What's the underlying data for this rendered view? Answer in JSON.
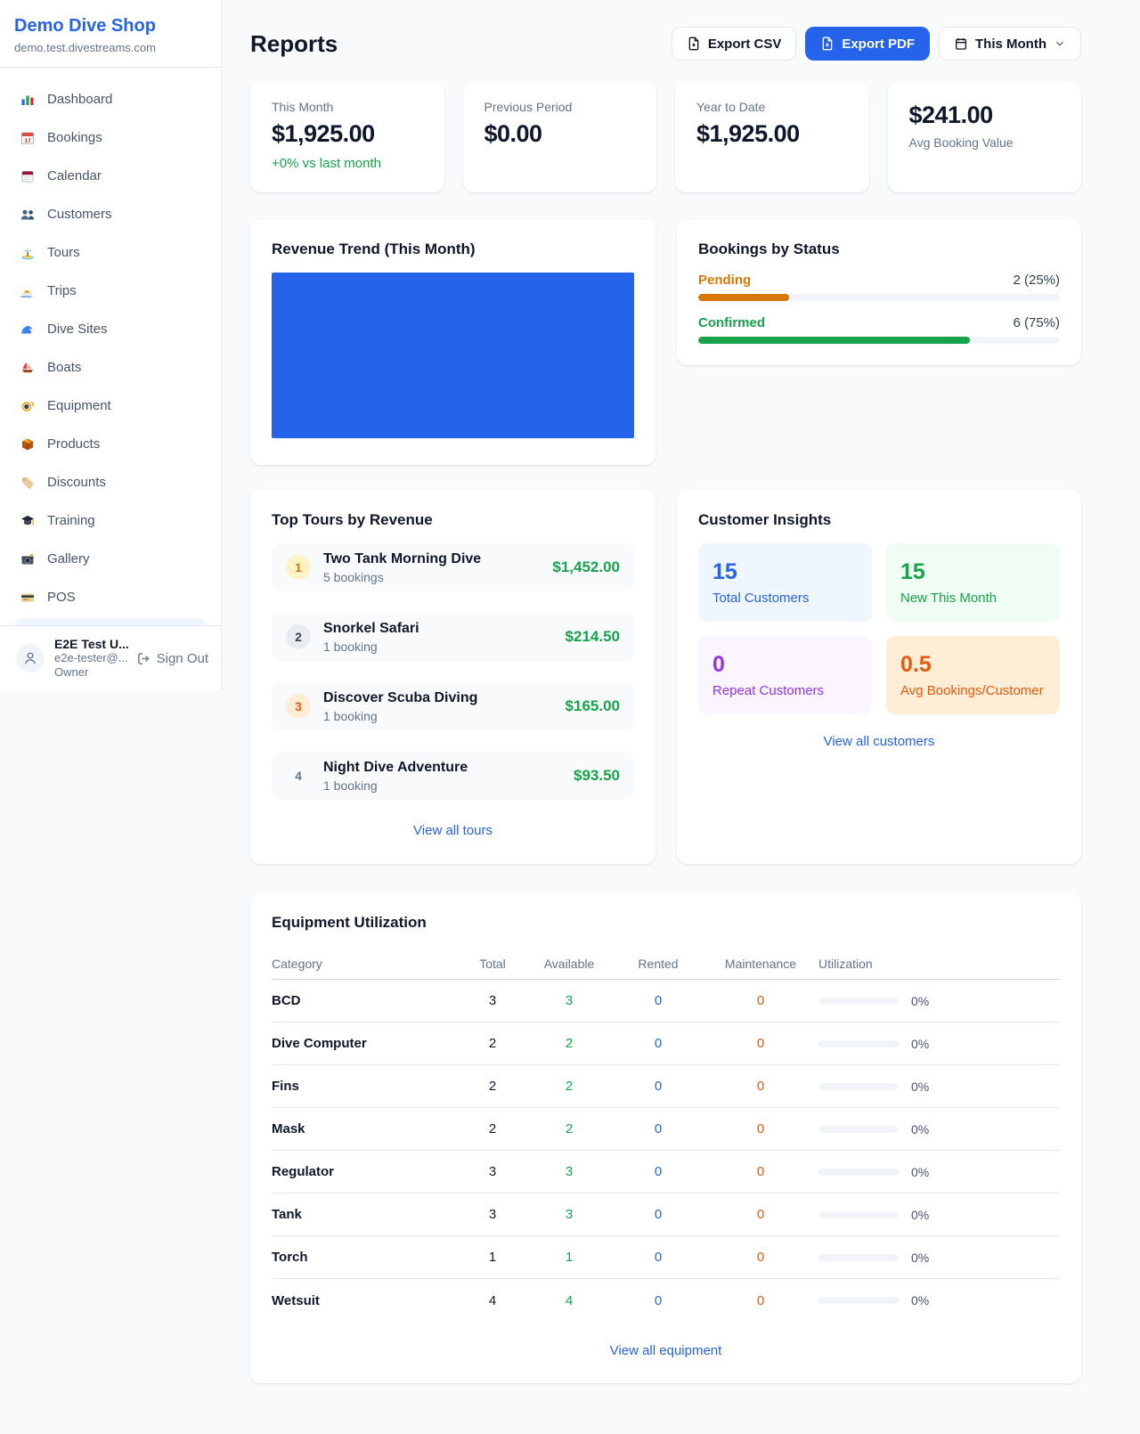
{
  "sidebar": {
    "title": "Demo Dive Shop",
    "subtitle": "demo.test.divestreams.com",
    "items": [
      {
        "icon": "bar-chart",
        "label": "Dashboard"
      },
      {
        "icon": "calendar-date",
        "label": "Bookings"
      },
      {
        "icon": "tear-calendar",
        "label": "Calendar"
      },
      {
        "icon": "people",
        "label": "Customers"
      },
      {
        "icon": "island",
        "label": "Tours"
      },
      {
        "icon": "speedboat",
        "label": "Trips"
      },
      {
        "icon": "wave",
        "label": "Dive Sites"
      },
      {
        "icon": "sailboat",
        "label": "Boats"
      },
      {
        "icon": "diving-mask",
        "label": "Equipment"
      },
      {
        "icon": "package",
        "label": "Products"
      },
      {
        "icon": "tag",
        "label": "Discounts"
      },
      {
        "icon": "graduation-cap",
        "label": "Training"
      },
      {
        "icon": "camera",
        "label": "Gallery"
      },
      {
        "icon": "credit-card",
        "label": "POS"
      }
    ],
    "user": {
      "name": "E2E Test U...",
      "email": "e2e-tester@...",
      "role": "Owner",
      "sign_out": "Sign Out"
    }
  },
  "header": {
    "title": "Reports",
    "export_csv": "Export CSV",
    "export_pdf": "Export PDF",
    "period": "This Month",
    "accent_color": "#2563eb"
  },
  "stats": [
    {
      "label": "This Month",
      "value": "$1,925.00",
      "delta": "+0% vs last month",
      "delta_color": "#16a34a"
    },
    {
      "label": "Previous Period",
      "value": "$0.00"
    },
    {
      "label": "Year to Date",
      "value": "$1,925.00"
    },
    {
      "label": "Avg Booking Value",
      "value": "$241.00"
    }
  ],
  "revenue_trend": {
    "title": "Revenue Trend (This Month)",
    "fill_color": "#2563eb"
  },
  "bookings_by_status": {
    "title": "Bookings by Status",
    "rows": [
      {
        "label": "Pending",
        "value_text": "2 (25%)",
        "count": 2,
        "pct": 25,
        "color": "#d97706"
      },
      {
        "label": "Confirmed",
        "value_text": "6 (75%)",
        "count": 6,
        "pct": 75,
        "color": "#16a34a"
      }
    ]
  },
  "top_tours": {
    "title": "Top Tours by Revenue",
    "items": [
      {
        "rank": "1",
        "name": "Two Tank Morning Dive",
        "bookings": "5 bookings",
        "revenue": "$1,452.00"
      },
      {
        "rank": "2",
        "name": "Snorkel Safari",
        "bookings": "1 booking",
        "revenue": "$214.50"
      },
      {
        "rank": "3",
        "name": "Discover Scuba Diving",
        "bookings": "1 booking",
        "revenue": "$165.00"
      },
      {
        "rank": "4",
        "name": "Night Dive Adventure",
        "bookings": "1 booking",
        "revenue": "$93.50"
      }
    ],
    "view_all": "View all tours"
  },
  "customer_insights": {
    "title": "Customer Insights",
    "tiles": [
      {
        "value": "15",
        "label": "Total Customers",
        "color": "#2563eb",
        "bg": "#eff6ff"
      },
      {
        "value": "15",
        "label": "New This Month",
        "color": "#16a34a",
        "bg": "#f0fdf4"
      },
      {
        "value": "0",
        "label": "Repeat Customers",
        "color": "#9333ea",
        "bg": "#faf5ff"
      },
      {
        "value": "0.5",
        "label": "Avg Bookings/Customer",
        "color": "#ea580c",
        "bg": "#ffedd5"
      }
    ],
    "view_all": "View all customers"
  },
  "equipment": {
    "title": "Equipment Utilization",
    "columns": [
      "Category",
      "Total",
      "Available",
      "Rented",
      "Maintenance",
      "Utilization"
    ],
    "rows": [
      {
        "category": "BCD",
        "total": "3",
        "available": "3",
        "rented": "0",
        "maintenance": "0",
        "utilization_pct": 0,
        "utilization_text": "0%"
      },
      {
        "category": "Dive Computer",
        "total": "2",
        "available": "2",
        "rented": "0",
        "maintenance": "0",
        "utilization_pct": 0,
        "utilization_text": "0%"
      },
      {
        "category": "Fins",
        "total": "2",
        "available": "2",
        "rented": "0",
        "maintenance": "0",
        "utilization_pct": 0,
        "utilization_text": "0%"
      },
      {
        "category": "Mask",
        "total": "2",
        "available": "2",
        "rented": "0",
        "maintenance": "0",
        "utilization_pct": 0,
        "utilization_text": "0%"
      },
      {
        "category": "Regulator",
        "total": "3",
        "available": "3",
        "rented": "0",
        "maintenance": "0",
        "utilization_pct": 0,
        "utilization_text": "0%"
      },
      {
        "category": "Tank",
        "total": "3",
        "available": "3",
        "rented": "0",
        "maintenance": "0",
        "utilization_pct": 0,
        "utilization_text": "0%"
      },
      {
        "category": "Torch",
        "total": "1",
        "available": "1",
        "rented": "0",
        "maintenance": "0",
        "utilization_pct": 0,
        "utilization_text": "0%"
      },
      {
        "category": "Wetsuit",
        "total": "4",
        "available": "4",
        "rented": "0",
        "maintenance": "0",
        "utilization_pct": 0,
        "utilization_text": "0%"
      }
    ],
    "view_all": "View all equipment"
  }
}
